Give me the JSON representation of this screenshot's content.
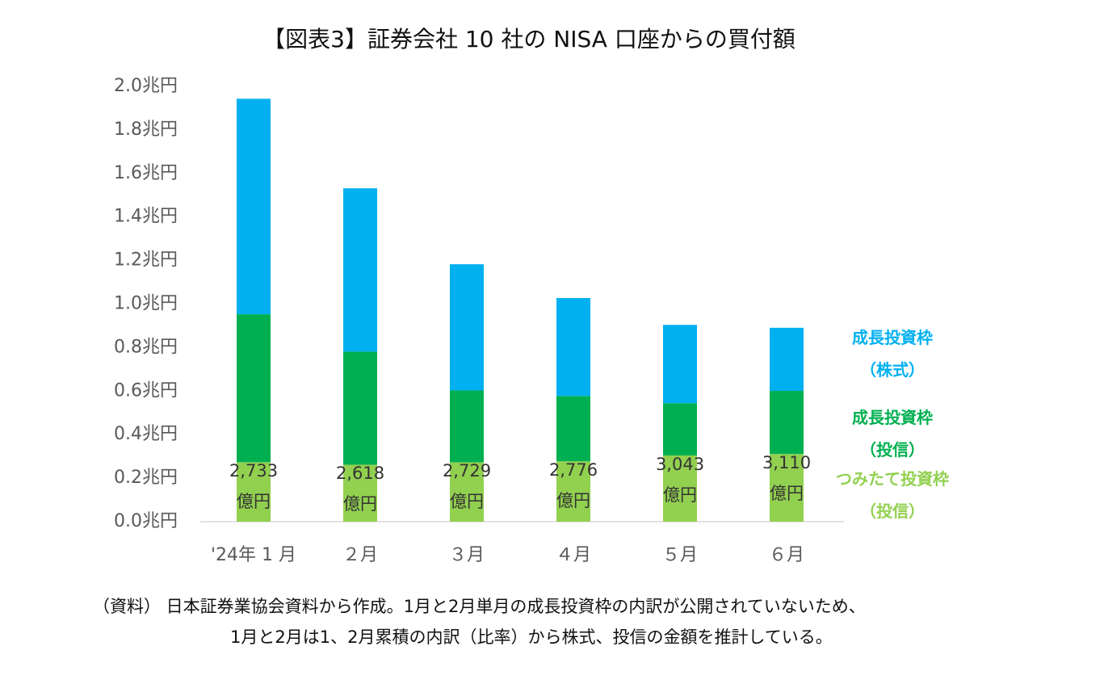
{
  "chart_data": {
    "type": "stacked_bar",
    "title": "【図表3】証券会社 10 社の NISA 口座からの買付額",
    "categories": [
      "'24年 1 月",
      "２月",
      "３月",
      "４月",
      "５月",
      "６月"
    ],
    "series": [
      {
        "name": "つみたて投資枠\n（投信）",
        "color": "#92d050",
        "values": [
          0.2733,
          0.2618,
          0.2729,
          0.2776,
          0.3043,
          0.311
        ],
        "value_labels": [
          "2,733\n億円",
          "2,618\n億円",
          "2,729\n億円",
          "2,776\n億円",
          "3,043\n億円",
          "3,110\n億円"
        ]
      },
      {
        "name": "成長投資枠\n（投信）",
        "color": "#00b050",
        "values": [
          0.68,
          0.52,
          0.33,
          0.3,
          0.24,
          0.29
        ]
      },
      {
        "name": "成長投資枠\n（株式）",
        "color": "#00b0f0",
        "values": [
          0.99,
          0.75,
          0.58,
          0.45,
          0.36,
          0.29
        ]
      }
    ],
    "ylim": [
      0,
      2.0
    ],
    "yticks": [
      {
        "value": 0,
        "label": "0.0兆円"
      },
      {
        "value": 0.2,
        "label": "0.2兆円"
      },
      {
        "value": 0.4,
        "label": "0.4兆円"
      },
      {
        "value": 0.6,
        "label": "0.6兆円"
      },
      {
        "value": 0.8,
        "label": "0.8兆円"
      },
      {
        "value": 1.0,
        "label": "1.0兆円"
      },
      {
        "value": 1.2,
        "label": "1.2兆円"
      },
      {
        "value": 1.4,
        "label": "1.4兆円"
      },
      {
        "value": 1.6,
        "label": "1.6兆円"
      },
      {
        "value": 1.8,
        "label": "1.8兆円"
      },
      {
        "value": 2.0,
        "label": "2.0兆円"
      }
    ],
    "grid": false,
    "legend": "right",
    "notes": [
      "（資料） 日本証券業協会資料から作成。1月と2月単月の成長投資枠の内訳が公開されていないため、",
      "1月と2月は1、2月累積の内訳（比率）から株式、投信の金額を推計している。"
    ]
  }
}
